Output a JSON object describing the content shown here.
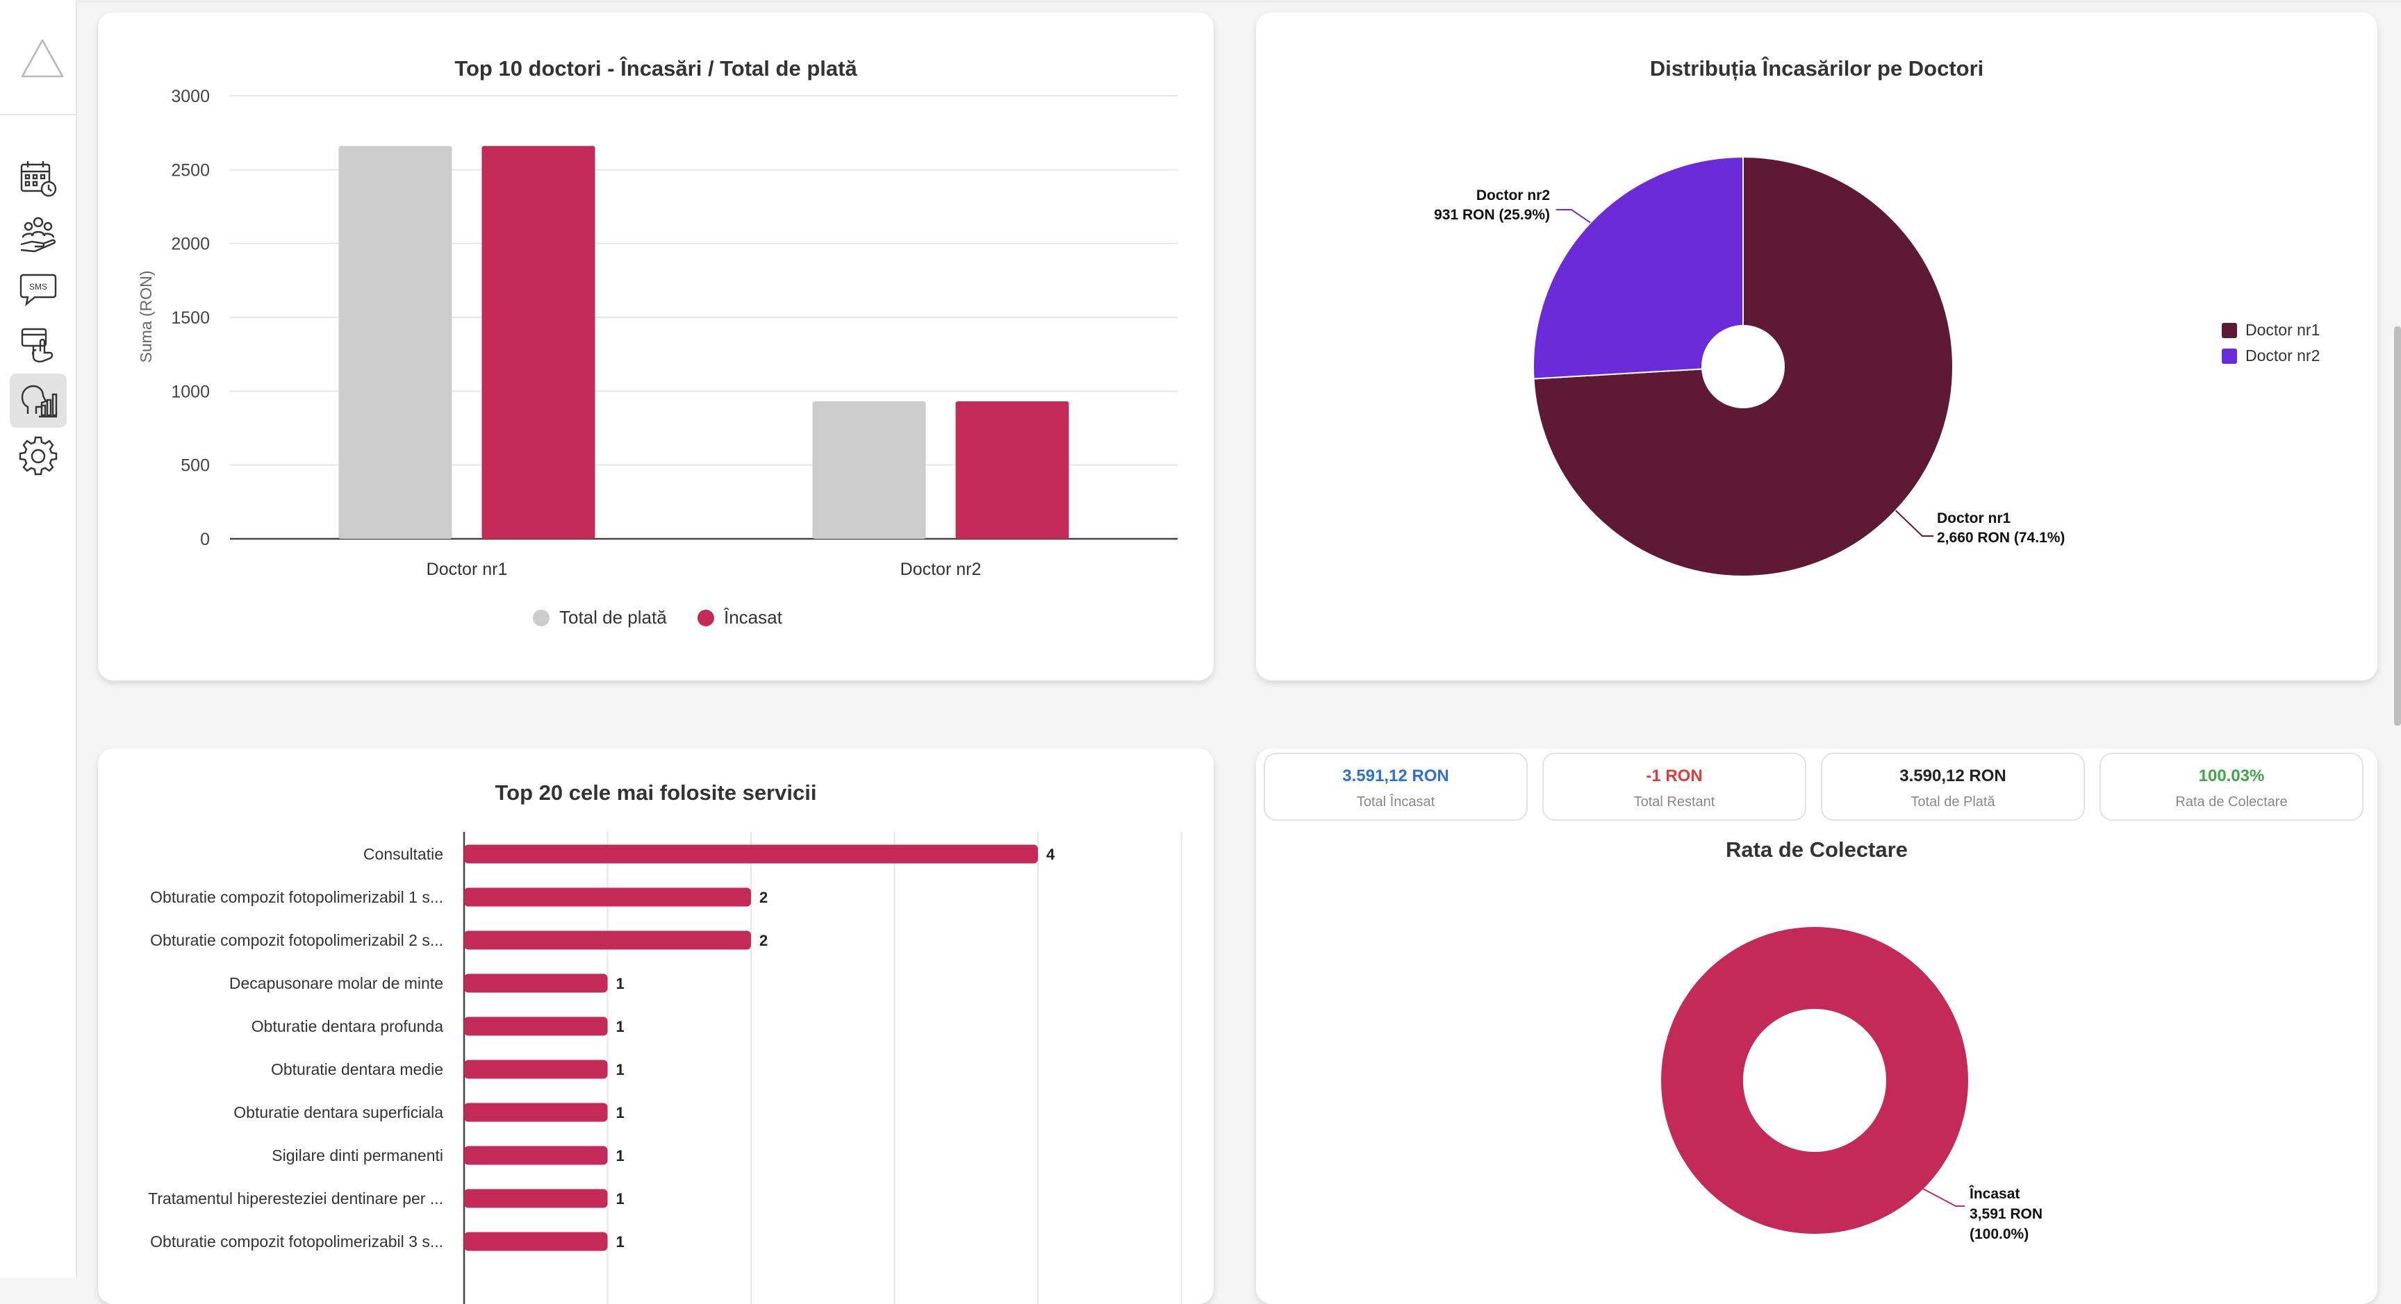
{
  "colors": {
    "grey_bar": "#cccccc",
    "crimson": "#c42a57",
    "dark_maroon": "#5e1a34",
    "purple": "#6b2bd9",
    "blue_value": "#2f6fd8",
    "red_value": "#e33b3b",
    "green_value": "#3fa64a"
  },
  "sidebar": {
    "items": [
      {
        "icon": "calendar-icon"
      },
      {
        "icon": "patients-icon"
      },
      {
        "icon": "sms-icon",
        "text": "SMS"
      },
      {
        "icon": "payment-icon"
      },
      {
        "icon": "reports-icon",
        "active": true
      },
      {
        "icon": "settings-icon"
      }
    ]
  },
  "charts": {
    "bar_doctors": {
      "title": "Top 10 doctori - Încasări / Total de plată",
      "ylabel": "Suma (RON)",
      "legend": [
        "Total de plată",
        "Încasat"
      ]
    },
    "pie": {
      "title": "Distribuția Încasărilor pe Doctori",
      "labels": [
        {
          "name": "Doctor nr2",
          "value": "931 RON (25.9%)"
        },
        {
          "name": "Doctor nr1",
          "value": "2,660 RON (74.1%)"
        }
      ],
      "legend": [
        "Doctor nr1",
        "Doctor nr2"
      ]
    },
    "services": {
      "title": "Top 20 cele mai folosite servicii"
    },
    "collection": {
      "title": "Rata de Colectare",
      "label_name": "Încasat",
      "label_value": "3,591 RON",
      "label_pct": "(100.0%)"
    }
  },
  "stats": [
    {
      "value": "3.591,12 RON",
      "label": "Total Încasat",
      "color": "#2f6fd8"
    },
    {
      "value": "-1 RON",
      "label": "Total Restant",
      "color": "#e33b3b"
    },
    {
      "value": "3.590,12 RON",
      "label": "Total de Plată",
      "color": "#222222"
    },
    {
      "value": "100.03%",
      "label": "Rata de Colectare",
      "color": "#3fa64a"
    }
  ],
  "chart_data": [
    {
      "type": "bar",
      "title": "Top 10 doctori - Încasări / Total de plată",
      "categories": [
        "Doctor nr1",
        "Doctor nr2"
      ],
      "series": [
        {
          "name": "Total de plată",
          "values": [
            2660,
            931
          ]
        },
        {
          "name": "Încasat",
          "values": [
            2660,
            931
          ]
        }
      ],
      "ylabel": "Suma (RON)",
      "yticks": [
        0,
        500,
        1000,
        1500,
        2000,
        2500,
        3000
      ],
      "ylim": [
        0,
        3000
      ],
      "grid": true,
      "legend": "bottom"
    },
    {
      "type": "pie",
      "title": "Distribuția Încasărilor pe Doctori",
      "slices": [
        {
          "name": "Doctor nr1",
          "value": 2660,
          "percent": 74.1
        },
        {
          "name": "Doctor nr2",
          "value": 931,
          "percent": 25.9
        }
      ],
      "legend": "right"
    },
    {
      "type": "bar",
      "orientation": "horizontal",
      "title": "Top 20 cele mai folosite servicii",
      "categories": [
        "Consultatie",
        "Obturatie compozit fotopolimerizabil 1 s...",
        "Obturatie compozit fotopolimerizabil 2 s...",
        "Decapusonare molar de minte",
        "Obturatie dentara profunda",
        "Obturatie dentara medie",
        "Obturatie dentara superficiala",
        "Sigilare dinti permanenti",
        "Tratamentul hiperesteziei dentinare per ...",
        "Obturatie compozit fotopolimerizabil 3 s..."
      ],
      "values": [
        4,
        2,
        2,
        1,
        1,
        1,
        1,
        1,
        1,
        1
      ],
      "grid": true
    },
    {
      "type": "pie",
      "title": "Rata de Colectare",
      "slices": [
        {
          "name": "Încasat",
          "value": 3591,
          "percent": 100.0
        }
      ]
    }
  ]
}
